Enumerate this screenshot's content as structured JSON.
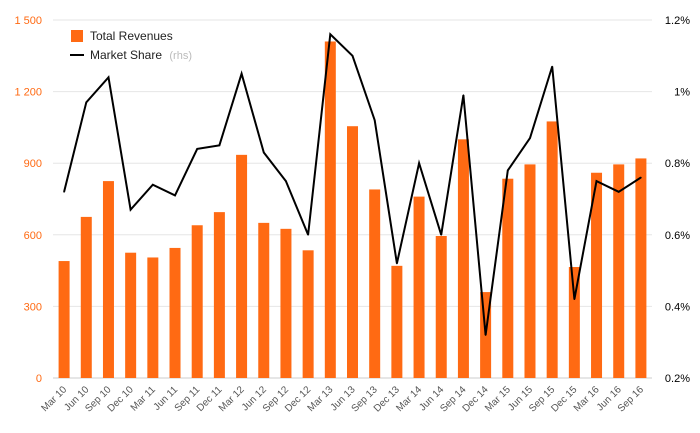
{
  "chart_data": {
    "type": "bar+line",
    "categories": [
      "Mar 10",
      "Jun 10",
      "Sep 10",
      "Dec 10",
      "Mar 11",
      "Jun 11",
      "Sep 11",
      "Dec 11",
      "Mar 12",
      "Jun 12",
      "Sep 12",
      "Dec 12",
      "Mar 13",
      "Jun 13",
      "Sep 13",
      "Dec 13",
      "Mar 14",
      "Jun 14",
      "Sep 14",
      "Dec 14",
      "Mar 15",
      "Jun 15",
      "Sep 15",
      "Dec 15",
      "Mar 16",
      "Jun 16",
      "Sep 16"
    ],
    "series": [
      {
        "name": "Total Revenues",
        "type": "bar",
        "axis": "left",
        "color": "#ff6a13",
        "values": [
          490,
          675,
          825,
          525,
          505,
          545,
          640,
          695,
          935,
          650,
          625,
          535,
          1410,
          1055,
          790,
          470,
          760,
          595,
          1000,
          360,
          835,
          895,
          1075,
          465,
          860,
          895,
          920
        ]
      },
      {
        "name": "Market Share",
        "legend_suffix": "(rhs)",
        "type": "line",
        "axis": "right",
        "color": "#000000",
        "values": [
          0.72,
          0.97,
          1.04,
          0.67,
          0.74,
          0.71,
          0.84,
          0.85,
          1.05,
          0.83,
          0.75,
          0.6,
          1.16,
          1.1,
          0.92,
          0.52,
          0.8,
          0.6,
          0.99,
          0.32,
          0.78,
          0.87,
          1.07,
          0.42,
          0.75,
          0.72,
          0.76
        ]
      }
    ],
    "ylim_left": [
      0,
      1500
    ],
    "ylim_right": [
      0.2,
      1.2
    ],
    "yticks_left": [
      "0",
      "300",
      "600",
      "900",
      "1 200",
      "1 500"
    ],
    "yticks_right": [
      "0.2%",
      "0.4%",
      "0.6%",
      "0.8%",
      "1%",
      "1.2%"
    ],
    "grid": true,
    "legend_position": "top-left",
    "title": "",
    "xlabel": "",
    "ylabel": ""
  }
}
